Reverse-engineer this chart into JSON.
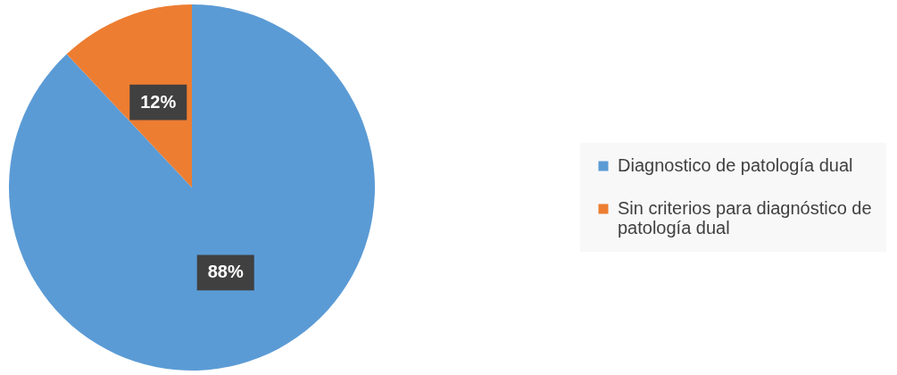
{
  "chart_data": {
    "type": "pie",
    "categories": [
      "Diagnostico de patología dual",
      "Sin criterios para diagnóstico de patología dual"
    ],
    "values": [
      88,
      12
    ],
    "colors": [
      "#5b9bd5",
      "#ed7d31"
    ],
    "value_labels": [
      "88%",
      "12%"
    ],
    "legend": "right"
  }
}
